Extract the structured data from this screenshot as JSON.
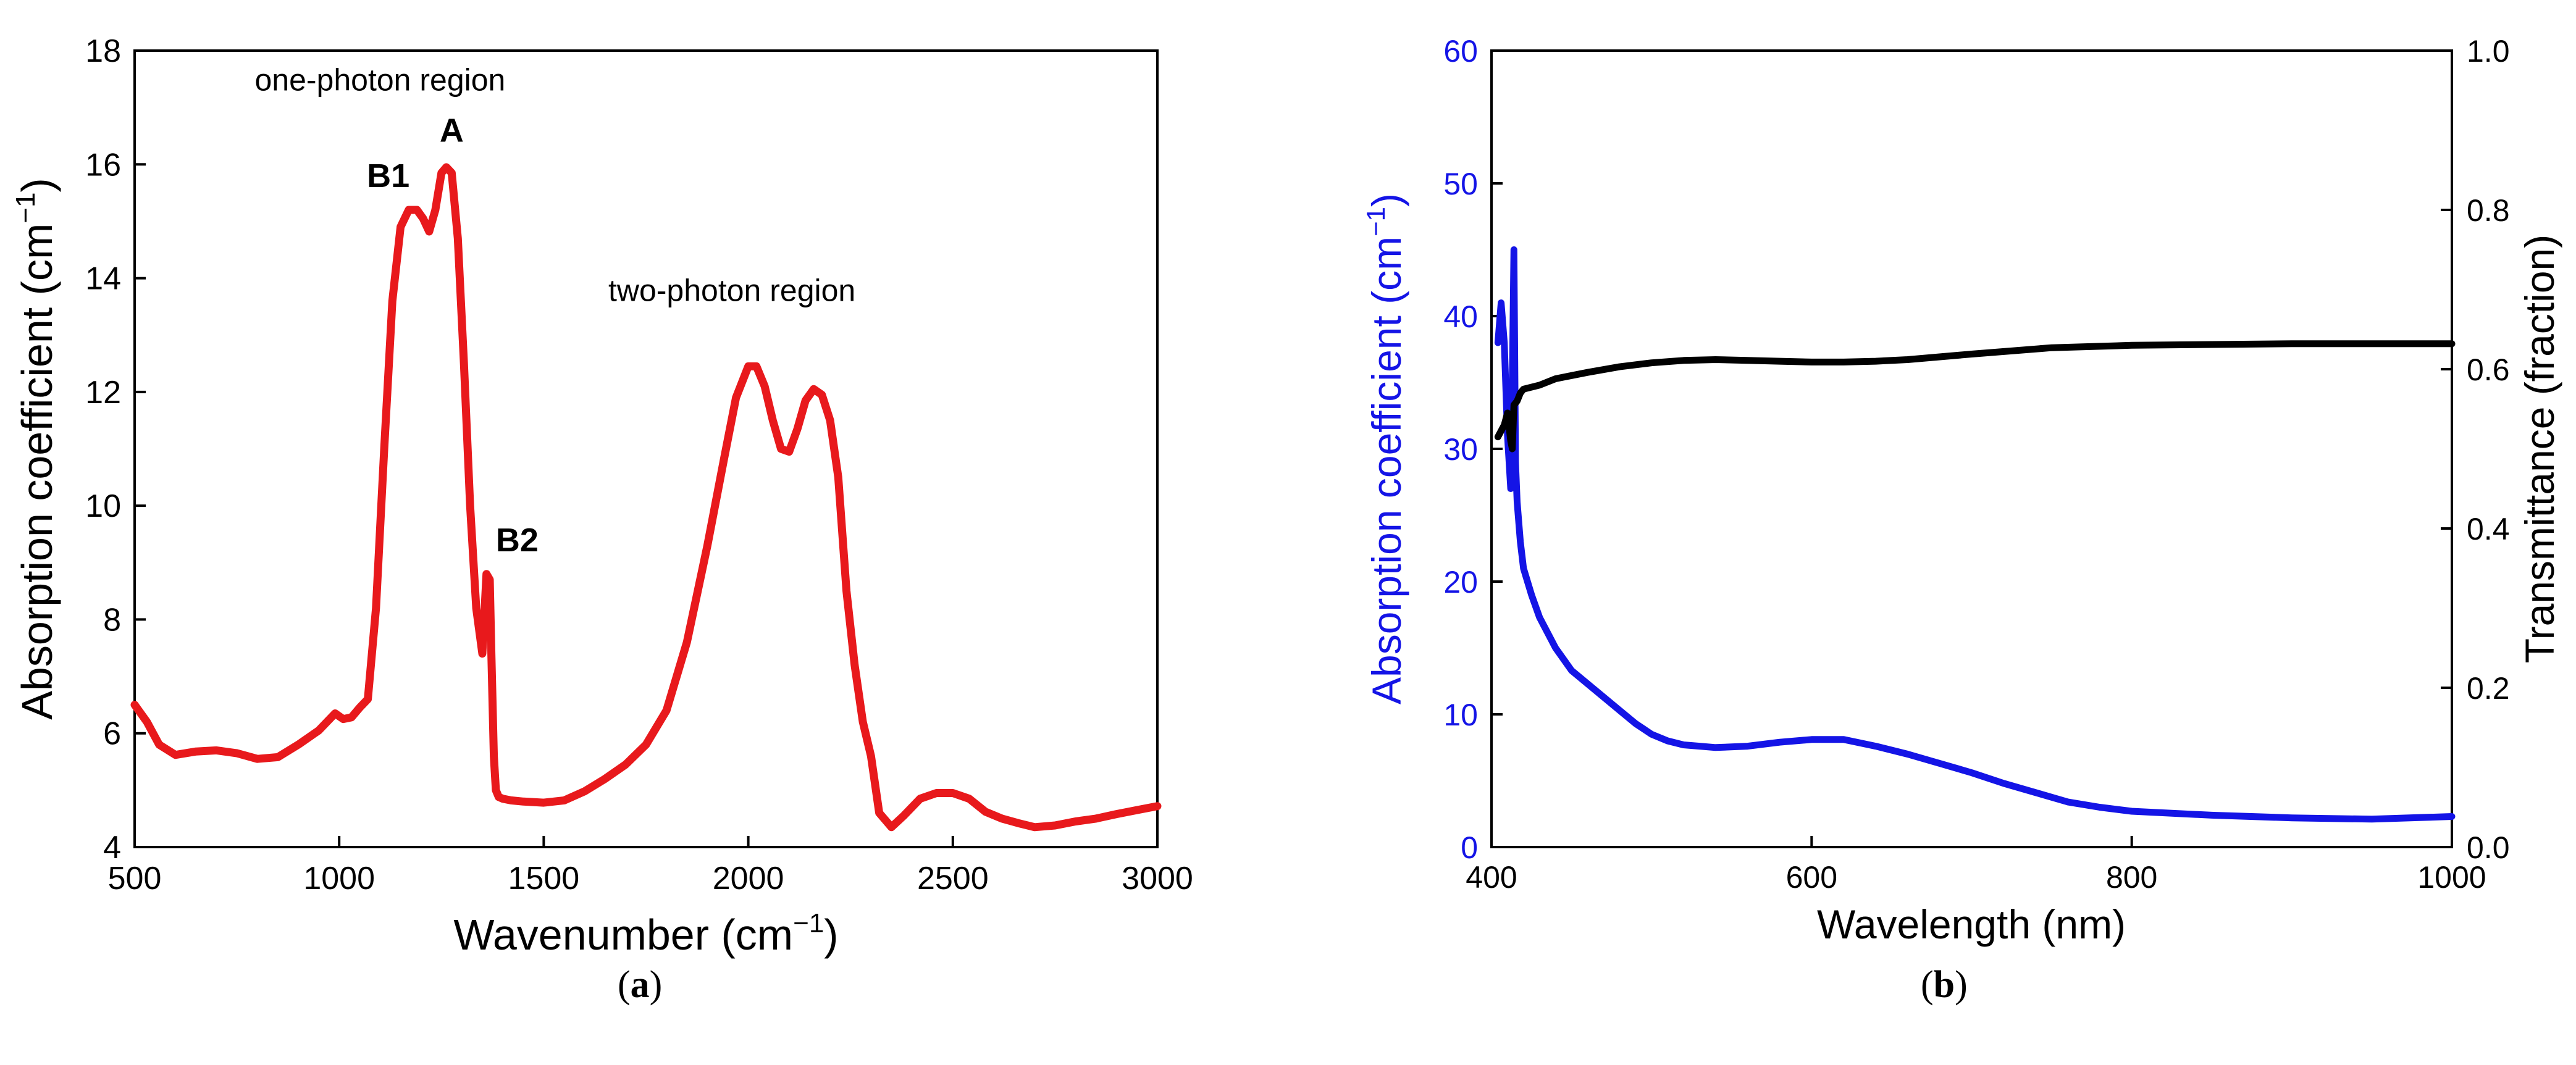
{
  "chart_data": [
    {
      "type": "line",
      "panel": "(a)",
      "xlabel": "Wavenumber (cm",
      "xlabel_sup": "−1",
      "xlabel_end": ")",
      "ylabel": "Absorption coefficient (cm",
      "ylabel_sup": "−1",
      "ylabel_end": ")",
      "xlim": [
        500,
        3000
      ],
      "ylim": [
        4,
        18
      ],
      "xticks": [
        500,
        1000,
        1500,
        2000,
        2500,
        3000
      ],
      "yticks": [
        4,
        6,
        8,
        10,
        12,
        14,
        16,
        18
      ],
      "grid": false,
      "series": [
        {
          "name": "absorption",
          "color": "#e8191c",
          "x": [
            500,
            530,
            560,
            600,
            650,
            700,
            750,
            800,
            850,
            900,
            950,
            990,
            1010,
            1030,
            1050,
            1070,
            1090,
            1110,
            1130,
            1150,
            1170,
            1190,
            1205,
            1220,
            1235,
            1250,
            1262,
            1275,
            1290,
            1305,
            1320,
            1335,
            1350,
            1360,
            1368,
            1372,
            1378,
            1383,
            1390,
            1400,
            1420,
            1450,
            1500,
            1550,
            1600,
            1650,
            1700,
            1750,
            1800,
            1850,
            1900,
            1940,
            1970,
            2000,
            2020,
            2040,
            2060,
            2080,
            2100,
            2120,
            2140,
            2160,
            2180,
            2200,
            2220,
            2240,
            2260,
            2280,
            2300,
            2320,
            2350,
            2380,
            2420,
            2460,
            2500,
            2540,
            2580,
            2620,
            2660,
            2700,
            2750,
            2800,
            2850,
            2900,
            2950,
            3000
          ],
          "y": [
            6.5,
            6.2,
            5.8,
            5.62,
            5.68,
            5.7,
            5.65,
            5.55,
            5.58,
            5.8,
            6.05,
            6.35,
            6.25,
            6.28,
            6.45,
            6.6,
            8.2,
            11.0,
            13.6,
            14.9,
            15.2,
            15.2,
            15.05,
            14.82,
            15.2,
            15.85,
            15.95,
            15.85,
            14.7,
            12.5,
            10.0,
            8.2,
            7.4,
            8.8,
            8.7,
            7.4,
            5.6,
            5.0,
            4.88,
            4.85,
            4.82,
            4.8,
            4.78,
            4.82,
            4.98,
            5.2,
            5.45,
            5.8,
            6.4,
            7.6,
            9.3,
            10.8,
            11.9,
            12.45,
            12.45,
            12.1,
            11.5,
            11.0,
            10.95,
            11.35,
            11.85,
            12.05,
            11.95,
            11.5,
            10.5,
            8.5,
            7.2,
            6.2,
            5.6,
            4.6,
            4.35,
            4.55,
            4.85,
            4.95,
            4.95,
            4.85,
            4.62,
            4.5,
            4.42,
            4.35,
            4.38,
            4.45,
            4.5,
            4.58,
            4.65,
            4.72
          ]
        }
      ],
      "annotations": [
        {
          "text": "one-photon region",
          "x": 1100,
          "y": 17.3,
          "bold": false
        },
        {
          "text": "A",
          "x": 1275,
          "y": 16.4,
          "bold": true
        },
        {
          "text": "B1",
          "x": 1120,
          "y": 15.6,
          "bold": true
        },
        {
          "text": "two-photon region",
          "x": 1960,
          "y": 13.6,
          "bold": false
        },
        {
          "text": "B2",
          "x": 1435,
          "y": 9.2,
          "bold": true
        }
      ]
    },
    {
      "type": "line",
      "panel": "(b)",
      "xlabel": "Wavelength (nm)",
      "ylabel": "Absorption coefficient (cm",
      "ylabel_sup": "−1",
      "ylabel_end": ")",
      "ylabel_color": "#1414e6",
      "y2label": "Transmittance (fraction)",
      "xlim": [
        400,
        1000
      ],
      "ylim": [
        0,
        60
      ],
      "y2lim": [
        0.0,
        1.0
      ],
      "xticks": [
        400,
        600,
        800,
        1000
      ],
      "yticks": [
        0,
        10,
        20,
        30,
        40,
        50,
        60
      ],
      "y2ticks": [
        "0.0",
        "0.2",
        "0.4",
        "0.6",
        "0.8",
        "1.0"
      ],
      "grid": false,
      "series": [
        {
          "name": "absorption coefficient",
          "axis": "left",
          "color": "#1414e6",
          "x": [
            404,
            406,
            408,
            410,
            412,
            413,
            414,
            415,
            416,
            418,
            420,
            425,
            430,
            440,
            450,
            460,
            470,
            480,
            490,
            500,
            510,
            520,
            530,
            540,
            560,
            580,
            600,
            620,
            640,
            660,
            680,
            700,
            720,
            740,
            760,
            780,
            800,
            850,
            900,
            950,
            1000
          ],
          "y": [
            38,
            41,
            38,
            31,
            27,
            35,
            45,
            29,
            26,
            23,
            21,
            19,
            17.3,
            15,
            13.3,
            12.3,
            11.3,
            10.3,
            9.3,
            8.5,
            8.0,
            7.7,
            7.6,
            7.5,
            7.6,
            7.9,
            8.1,
            8.1,
            7.6,
            7.0,
            6.3,
            5.6,
            4.8,
            4.1,
            3.4,
            3.0,
            2.7,
            2.4,
            2.2,
            2.1,
            2.3
          ]
        },
        {
          "name": "transmittance",
          "axis": "right",
          "color": "#000000",
          "x": [
            404,
            408,
            410,
            412,
            413,
            414,
            416,
            418,
            420,
            430,
            440,
            450,
            460,
            480,
            500,
            520,
            540,
            560,
            580,
            600,
            620,
            640,
            660,
            700,
            750,
            800,
            850,
            900,
            950,
            1000
          ],
          "y": [
            0.515,
            0.53,
            0.545,
            0.51,
            0.5,
            0.555,
            0.56,
            0.57,
            0.575,
            0.58,
            0.588,
            0.592,
            0.596,
            0.603,
            0.608,
            0.611,
            0.612,
            0.611,
            0.61,
            0.609,
            0.609,
            0.61,
            0.612,
            0.619,
            0.627,
            0.63,
            0.631,
            0.632,
            0.632,
            0.632
          ]
        }
      ]
    }
  ],
  "captions": {
    "a": {
      "open": "(",
      "letter": "a",
      "close": ")"
    },
    "b": {
      "open": "(",
      "letter": "b",
      "close": ")"
    }
  }
}
